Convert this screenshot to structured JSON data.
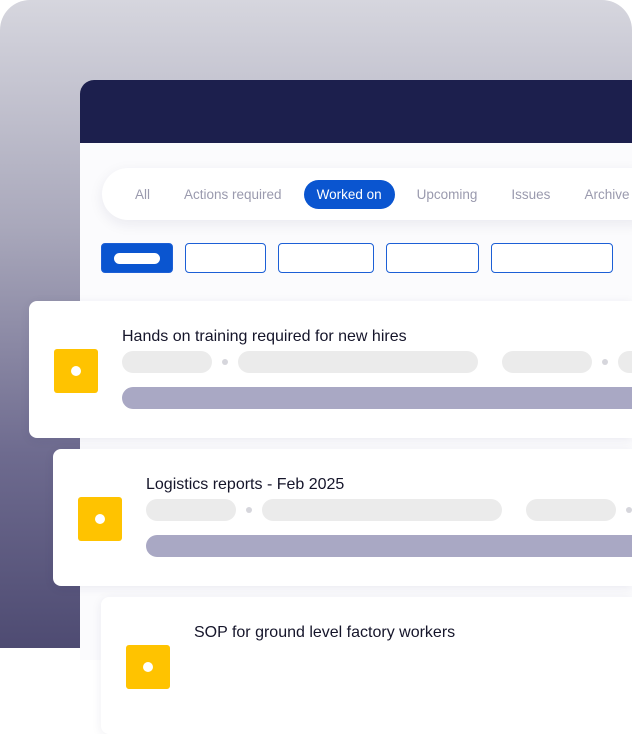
{
  "tabs": [
    {
      "label": "All"
    },
    {
      "label": "Actions required"
    },
    {
      "label": "Worked on",
      "active": true
    },
    {
      "label": "Upcoming"
    },
    {
      "label": "Issues"
    },
    {
      "label": "Archive"
    }
  ],
  "cards": [
    {
      "title": "Hands on training required for new hires"
    },
    {
      "title": "Logistics reports - Feb 2025"
    },
    {
      "title": "SOP for ground level factory workers"
    }
  ],
  "colors": {
    "header": "#1c1f4d",
    "accent": "#0a55d0",
    "icon": "#ffc300",
    "bar": "#a9a8c4"
  }
}
